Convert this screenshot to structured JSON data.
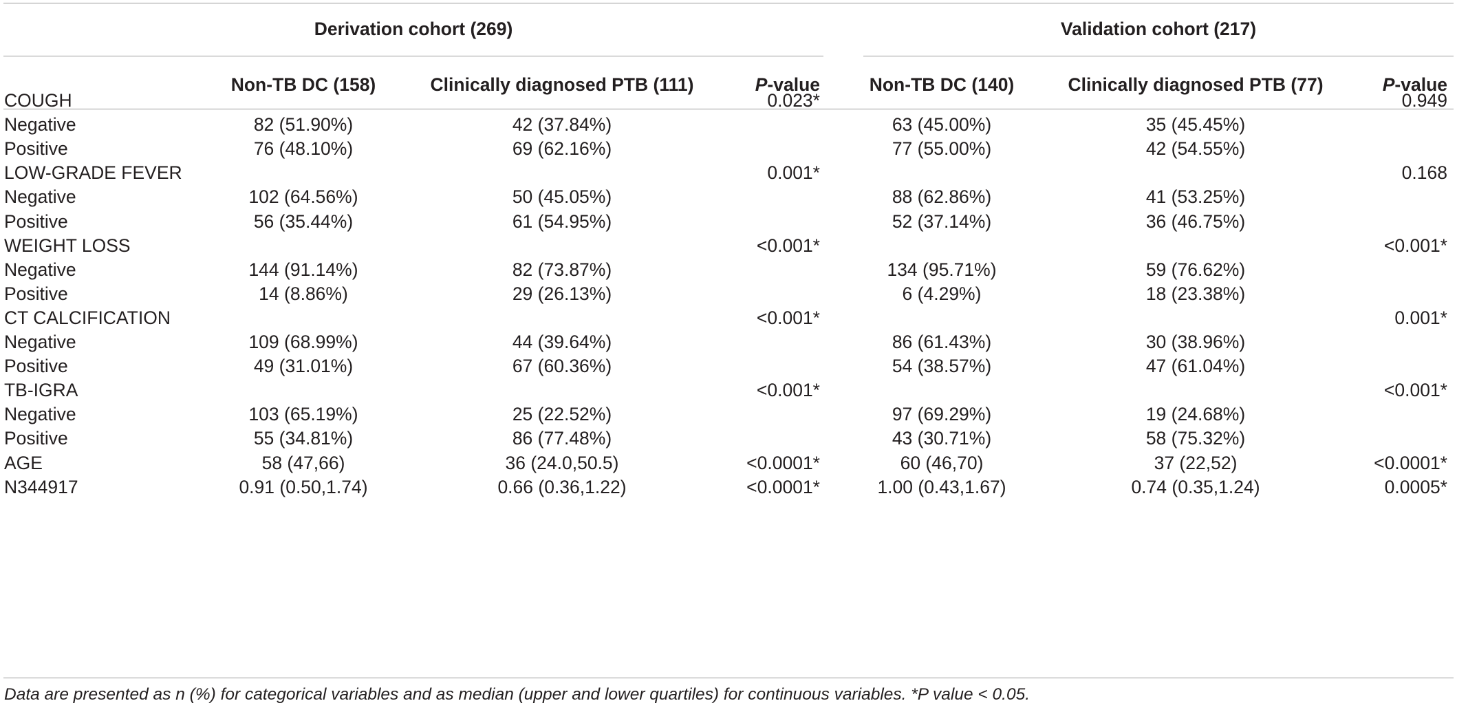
{
  "group_headers": {
    "derivation": "Derivation cohort (269)",
    "validation": "Validation cohort (217)"
  },
  "col_headers": {
    "d_non_tb": "Non-TB DC (158)",
    "d_ptb": "Clinically diagnosed PTB (111)",
    "d_p_italic": "P",
    "d_p_rest": "-value",
    "v_non_tb": "Non-TB DC (140)",
    "v_ptb": "Clinically diagnosed PTB (77)",
    "v_p_italic": "P",
    "v_p_rest": "-value"
  },
  "rows": [
    {
      "label": "COUGH",
      "d_non_tb": "",
      "d_ptb": "",
      "d_p": "0.023*",
      "v_non_tb": "",
      "v_ptb": "",
      "v_p": "0.949"
    },
    {
      "label": "Negative",
      "d_non_tb": "82 (51.90%)",
      "d_ptb": "42 (37.84%)",
      "d_p": "",
      "v_non_tb": "63 (45.00%)",
      "v_ptb": "35 (45.45%)",
      "v_p": ""
    },
    {
      "label": "Positive",
      "d_non_tb": "76 (48.10%)",
      "d_ptb": "69 (62.16%)",
      "d_p": "",
      "v_non_tb": "77 (55.00%)",
      "v_ptb": "42 (54.55%)",
      "v_p": ""
    },
    {
      "label": "LOW-GRADE FEVER",
      "d_non_tb": "",
      "d_ptb": "",
      "d_p": "0.001*",
      "v_non_tb": "",
      "v_ptb": "",
      "v_p": "0.168"
    },
    {
      "label": "Negative",
      "d_non_tb": "102 (64.56%)",
      "d_ptb": "50 (45.05%)",
      "d_p": "",
      "v_non_tb": "88 (62.86%)",
      "v_ptb": "41 (53.25%)",
      "v_p": ""
    },
    {
      "label": "Positive",
      "d_non_tb": "56 (35.44%)",
      "d_ptb": "61 (54.95%)",
      "d_p": "",
      "v_non_tb": "52 (37.14%)",
      "v_ptb": "36 (46.75%)",
      "v_p": ""
    },
    {
      "label": "WEIGHT LOSS",
      "d_non_tb": "",
      "d_ptb": "",
      "d_p": "<0.001*",
      "v_non_tb": "",
      "v_ptb": "",
      "v_p": "<0.001*"
    },
    {
      "label": "Negative",
      "d_non_tb": "144 (91.14%)",
      "d_ptb": "82 (73.87%)",
      "d_p": "",
      "v_non_tb": "134 (95.71%)",
      "v_ptb": "59 (76.62%)",
      "v_p": ""
    },
    {
      "label": "Positive",
      "d_non_tb": "14 (8.86%)",
      "d_ptb": "29 (26.13%)",
      "d_p": "",
      "v_non_tb": "6 (4.29%)",
      "v_ptb": "18 (23.38%)",
      "v_p": ""
    },
    {
      "label": "CT CALCIFICATION",
      "d_non_tb": "",
      "d_ptb": "",
      "d_p": "<0.001*",
      "v_non_tb": "",
      "v_ptb": "",
      "v_p": "0.001*"
    },
    {
      "label": "Negative",
      "d_non_tb": "109 (68.99%)",
      "d_ptb": "44 (39.64%)",
      "d_p": "",
      "v_non_tb": "86 (61.43%)",
      "v_ptb": "30 (38.96%)",
      "v_p": ""
    },
    {
      "label": "Positive",
      "d_non_tb": "49 (31.01%)",
      "d_ptb": "67 (60.36%)",
      "d_p": "",
      "v_non_tb": "54 (38.57%)",
      "v_ptb": "47 (61.04%)",
      "v_p": ""
    },
    {
      "label": "TB-IGRA",
      "d_non_tb": "",
      "d_ptb": "",
      "d_p": "<0.001*",
      "v_non_tb": "",
      "v_ptb": "",
      "v_p": "<0.001*"
    },
    {
      "label": "Negative",
      "d_non_tb": "103 (65.19%)",
      "d_ptb": "25 (22.52%)",
      "d_p": "",
      "v_non_tb": "97 (69.29%)",
      "v_ptb": "19 (24.68%)",
      "v_p": ""
    },
    {
      "label": "Positive",
      "d_non_tb": "55 (34.81%)",
      "d_ptb": "86 (77.48%)",
      "d_p": "",
      "v_non_tb": "43 (30.71%)",
      "v_ptb": "58 (75.32%)",
      "v_p": ""
    },
    {
      "label": "AGE",
      "d_non_tb": "58 (47,66)",
      "d_ptb": "36 (24.0,50.5)",
      "d_p": "<0.0001*",
      "v_non_tb": "60 (46,70)",
      "v_ptb": "37 (22,52)",
      "v_p": "<0.0001*"
    },
    {
      "label": "N344917",
      "d_non_tb": "0.91 (0.50,1.74)",
      "d_ptb": "0.66 (0.36,1.22)",
      "d_p": "<0.0001*",
      "v_non_tb": "1.00 (0.43,1.67)",
      "v_ptb": "0.74 (0.35,1.24)",
      "v_p": "0.0005*"
    }
  ],
  "footnote": "Data are presented as n (%) for categorical variables and as median (upper and lower quartiles) for continuous variables. *P value < 0.05."
}
